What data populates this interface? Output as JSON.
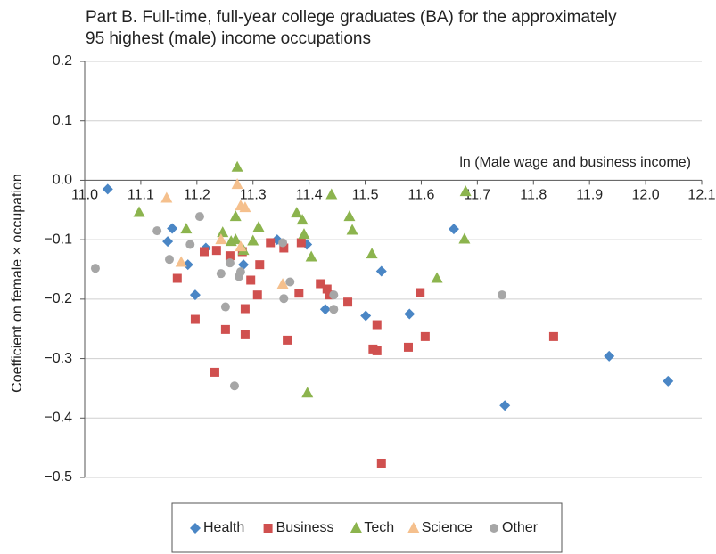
{
  "chart_data": {
    "type": "scatter",
    "title": [
      "Part B. Full-time, full-year college graduates (BA) for the approximately",
      "95 highest (male) income occupations"
    ],
    "x_label": "ln (Male wage and business income)",
    "y_label": "Coefficient on female × occupation",
    "xlim": [
      11.0,
      12.1
    ],
    "ylim": [
      -0.5,
      0.2
    ],
    "xticks": [
      {
        "value": 11,
        "label": "11.0"
      },
      11.1,
      11.2,
      11.3,
      11.4,
      11.5,
      11.6,
      11.7,
      11.8,
      11.9,
      {
        "value": 12,
        "label": "12.0"
      },
      12.1
    ],
    "yticks": [
      0.2,
      0.1,
      {
        "value": 0,
        "label": "0.0"
      },
      {
        "value": -0.1,
        "label": "−0.1"
      },
      {
        "value": -0.2,
        "label": "−0.2"
      },
      {
        "value": -0.3,
        "label": "−0.3"
      },
      {
        "value": -0.4,
        "label": "−0.4"
      },
      {
        "value": -0.5,
        "label": "−0.5"
      }
    ],
    "grid": true,
    "legend": "bottom",
    "series": [
      {
        "name": "Health",
        "color": "#4a86c5",
        "marker": "diamond",
        "x": [
          11.041,
          11.148,
          11.156,
          11.184,
          11.197,
          11.216,
          11.283,
          11.343,
          11.396,
          11.429,
          11.501,
          11.529,
          11.579,
          11.658,
          11.749,
          11.935,
          12.04
        ],
        "values": [
          -0.015,
          -0.103,
          -0.081,
          -0.142,
          -0.193,
          -0.114,
          -0.142,
          -0.1,
          -0.108,
          -0.217,
          -0.228,
          -0.153,
          -0.225,
          -0.082,
          -0.379,
          -0.296,
          -0.338
        ]
      },
      {
        "name": "Business",
        "color": "#d0504f",
        "marker": "square",
        "x": [
          11.165,
          11.197,
          11.213,
          11.232,
          11.235,
          11.251,
          11.259,
          11.281,
          11.286,
          11.286,
          11.296,
          11.308,
          11.312,
          11.331,
          11.355,
          11.361,
          11.382,
          11.386,
          11.42,
          11.432,
          11.436,
          11.469,
          11.514,
          11.521,
          11.521,
          11.529,
          11.577,
          11.598,
          11.607,
          11.836
        ],
        "values": [
          -0.165,
          -0.234,
          -0.12,
          -0.323,
          -0.118,
          -0.251,
          -0.127,
          -0.12,
          -0.26,
          -0.216,
          -0.168,
          -0.193,
          -0.142,
          -0.105,
          -0.114,
          -0.269,
          -0.19,
          -0.105,
          -0.174,
          -0.183,
          -0.193,
          -0.205,
          -0.284,
          -0.287,
          -0.243,
          -0.476,
          -0.281,
          -0.189,
          -0.263,
          -0.263
        ]
      },
      {
        "name": "Tech",
        "color": "#8cb44e",
        "marker": "triangle",
        "x": [
          11.097,
          11.181,
          11.246,
          11.272,
          11.261,
          11.269,
          11.269,
          11.283,
          11.3,
          11.31,
          11.378,
          11.388,
          11.391,
          11.404,
          11.397,
          11.44,
          11.472,
          11.477,
          11.512,
          11.628,
          11.677,
          11.679
        ],
        "values": [
          -0.054,
          -0.082,
          -0.088,
          0.022,
          -0.103,
          -0.061,
          -0.1,
          -0.118,
          -0.102,
          -0.079,
          -0.055,
          -0.067,
          -0.091,
          -0.129,
          -0.358,
          -0.024,
          -0.061,
          -0.084,
          -0.124,
          -0.165,
          -0.099,
          -0.019
        ]
      },
      {
        "name": "Science",
        "color": "#f5c08d",
        "marker": "triangle",
        "x": [
          11.146,
          11.172,
          11.243,
          11.272,
          11.278,
          11.286,
          11.278,
          11.353
        ],
        "values": [
          -0.03,
          -0.138,
          -0.1,
          -0.007,
          -0.043,
          -0.046,
          -0.112,
          -0.175
        ]
      },
      {
        "name": "Other",
        "color": "#a6a6a6",
        "marker": "circle",
        "x": [
          11.019,
          11.129,
          11.151,
          11.188,
          11.205,
          11.243,
          11.251,
          11.259,
          11.267,
          11.275,
          11.278,
          11.353,
          11.355,
          11.366,
          11.444,
          11.444,
          11.744
        ],
        "values": [
          -0.148,
          -0.085,
          -0.133,
          -0.108,
          -0.061,
          -0.157,
          -0.213,
          -0.139,
          -0.346,
          -0.162,
          -0.154,
          -0.105,
          -0.199,
          -0.171,
          -0.193,
          -0.217,
          -0.193
        ]
      }
    ]
  }
}
